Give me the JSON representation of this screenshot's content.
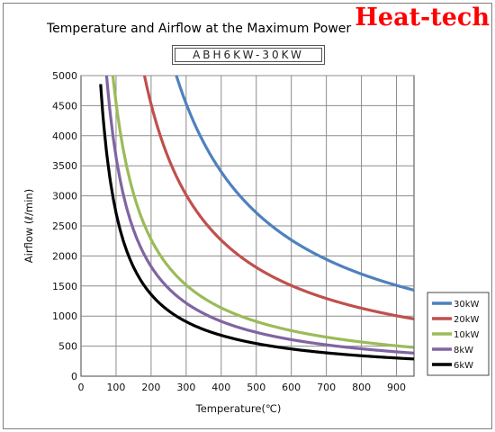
{
  "header": {
    "brand": "Heat-tech",
    "model": "ABH6KW-30KW"
  },
  "chart_data": {
    "type": "line",
    "title": "Temperature and Airflow at the Maximum Power",
    "subtitle": "ABH6KW-30KW",
    "xlabel": "Temperature(℃)",
    "ylabel": "Airflow (ℓ/min)",
    "xlim": [
      0,
      950
    ],
    "ylim": [
      0,
      5000
    ],
    "xticks": [
      0,
      100,
      200,
      300,
      400,
      500,
      600,
      700,
      800,
      900
    ],
    "yticks": [
      0,
      500,
      1000,
      1500,
      2000,
      2500,
      3000,
      3500,
      4000,
      4500,
      5000
    ],
    "grid": true,
    "legend_position": "right",
    "series": [
      {
        "name": "30kW",
        "color": "#4f81bd",
        "k": 1360000,
        "x": [
          272,
          300,
          350,
          400,
          450,
          500,
          550,
          600,
          650,
          700,
          750,
          800,
          850,
          900,
          950
        ]
      },
      {
        "name": "20kW",
        "color": "#c0504d",
        "k": 905000,
        "x": [
          181,
          200,
          250,
          300,
          350,
          400,
          450,
          500,
          550,
          600,
          650,
          700,
          750,
          800,
          850,
          900,
          950
        ]
      },
      {
        "name": "10kW",
        "color": "#9bbb59",
        "k": 455000,
        "x": [
          91,
          100,
          125,
          150,
          175,
          200,
          250,
          300,
          350,
          400,
          450,
          500,
          550,
          600,
          650,
          700,
          750,
          800,
          850,
          900,
          950
        ]
      },
      {
        "name": "8kW",
        "color": "#8064a2",
        "k": 365000,
        "x": [
          73,
          80,
          90,
          100,
          125,
          150,
          175,
          200,
          250,
          300,
          350,
          400,
          450,
          500,
          550,
          600,
          650,
          700,
          750,
          800,
          850,
          900,
          950
        ]
      },
      {
        "name": "6kW",
        "color": "#000000",
        "k": 272000,
        "x": [
          54,
          60,
          70,
          80,
          90,
          100,
          125,
          150,
          175,
          200,
          250,
          300,
          350,
          400,
          450,
          500,
          550,
          600,
          650,
          700,
          750,
          800,
          850,
          900,
          950
        ]
      }
    ]
  }
}
